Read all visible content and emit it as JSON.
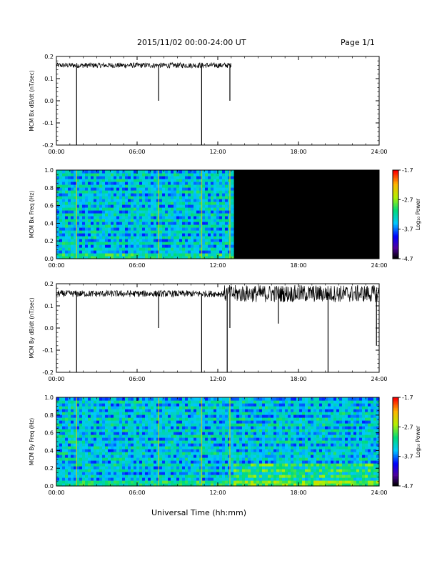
{
  "header": {
    "title": "2015/11/02  00:00-24:00 UT",
    "page": "Page 1/1"
  },
  "chart_data": [
    {
      "type": "line",
      "panel": "bx-dbdt",
      "ylabel": "MCM Bx dB/dt (nT/sec)",
      "xlabel": "",
      "xlim": [
        0,
        24
      ],
      "ylim": [
        -0.2,
        0.2
      ],
      "yticks": [
        "-0.2",
        "-0.1",
        "0.0",
        "0.1",
        "0.2"
      ],
      "xticks": [
        "00:00",
        "06:00",
        "12:00",
        "18:00",
        "24:00"
      ],
      "data_end_hour": 13.0,
      "baseline": 0.16,
      "noise_amp": 0.012,
      "spikes": [
        {
          "t": 1.5,
          "y": -0.2
        },
        {
          "t": 7.6,
          "y": 0.0
        },
        {
          "t": 10.8,
          "y": -0.2
        },
        {
          "t": 12.9,
          "y": 0.0
        }
      ]
    },
    {
      "type": "heatmap",
      "panel": "bx-spectrogram",
      "ylabel": "MCM Bx Freq (Hz)",
      "xlim": [
        0,
        24
      ],
      "ylim": [
        0,
        1.0
      ],
      "yticks": [
        "0.0",
        "0.2",
        "0.4",
        "0.6",
        "0.8",
        "1.0"
      ],
      "xticks": [
        "00:00",
        "06:00",
        "12:00",
        "18:00",
        "24:00"
      ],
      "data_end_hour": 13.0,
      "colorbar": {
        "label": "Log₁₀ Power",
        "min": -4.7,
        "max": -1.7,
        "ticks": [
          "-1.7",
          "-2.7",
          "-3.7",
          "-4.7"
        ]
      }
    },
    {
      "type": "line",
      "panel": "by-dbdt",
      "ylabel": "MCM By dB/dt (nT/sec)",
      "xlabel": "",
      "xlim": [
        0,
        24
      ],
      "ylim": [
        -0.2,
        0.2
      ],
      "yticks": [
        "-0.2",
        "-0.1",
        "0.0",
        "0.1",
        "0.2"
      ],
      "xticks": [
        "00:00",
        "06:00",
        "12:00",
        "18:00",
        "24:00"
      ],
      "data_end_hour": 24.0,
      "baseline": 0.155,
      "noise_amp": 0.015,
      "spikes": [
        {
          "t": 1.5,
          "y": -0.2
        },
        {
          "t": 7.6,
          "y": 0.0
        },
        {
          "t": 10.8,
          "y": -0.2
        },
        {
          "t": 12.7,
          "y": -0.2
        },
        {
          "t": 12.9,
          "y": 0.0
        },
        {
          "t": 16.5,
          "y": 0.02
        },
        {
          "t": 20.2,
          "y": -0.2
        },
        {
          "t": 23.8,
          "y": -0.08
        }
      ]
    },
    {
      "type": "heatmap",
      "panel": "by-spectrogram",
      "ylabel": "MCM By Freq (Hz)",
      "xlim": [
        0,
        24
      ],
      "ylim": [
        0,
        1.0
      ],
      "yticks": [
        "0.0",
        "0.2",
        "0.4",
        "0.6",
        "0.8",
        "1.0"
      ],
      "xticks": [
        "00:00",
        "06:00",
        "12:00",
        "18:00",
        "24:00"
      ],
      "data_end_hour": 24.0,
      "colorbar": {
        "label": "Log₁₀ Power",
        "min": -4.7,
        "max": -1.7,
        "ticks": [
          "-1.7",
          "-2.7",
          "-3.7",
          "-4.7"
        ]
      }
    }
  ],
  "footer": {
    "xlabel": "Universal Time (hh:mm)"
  }
}
